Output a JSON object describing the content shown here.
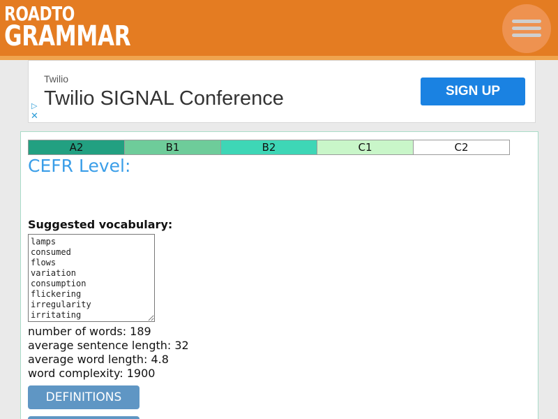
{
  "header": {
    "logo_top": "RoadTo",
    "logo_bottom": "Grammar",
    "accent": "#e47c22",
    "menu_icon": "hamburger-menu-icon"
  },
  "ad": {
    "brand": "Twilio",
    "title": "Twilio SIGNAL Conference",
    "cta": "SIGN UP",
    "cta_color": "#1a82e2",
    "adchoices_icon": "play-triangle-icon",
    "close_icon": "close-x-icon"
  },
  "cefr": {
    "levels": [
      {
        "label": "A2",
        "color": "#22a081"
      },
      {
        "label": "B1",
        "color": "#6ecc9a"
      },
      {
        "label": "B2",
        "color": "#3ed6b6"
      },
      {
        "label": "C1",
        "color": "#c9f6c9"
      },
      {
        "label": "C2",
        "color": "#ffffff"
      }
    ],
    "title": "CEFR Level:"
  },
  "vocabulary": {
    "heading": "Suggested vocabulary:",
    "words": [
      "lamps",
      "consumed",
      "flows",
      "variation",
      "consumption",
      "flickering",
      "irregularity",
      "irritating"
    ]
  },
  "stats": {
    "words": "number of words: 189",
    "sentence_length": "average sentence length: 32",
    "word_length": "average word length: 4.8",
    "complexity": "word complexity: 1900"
  },
  "buttons": {
    "definitions": "DEFINITIONS"
  }
}
